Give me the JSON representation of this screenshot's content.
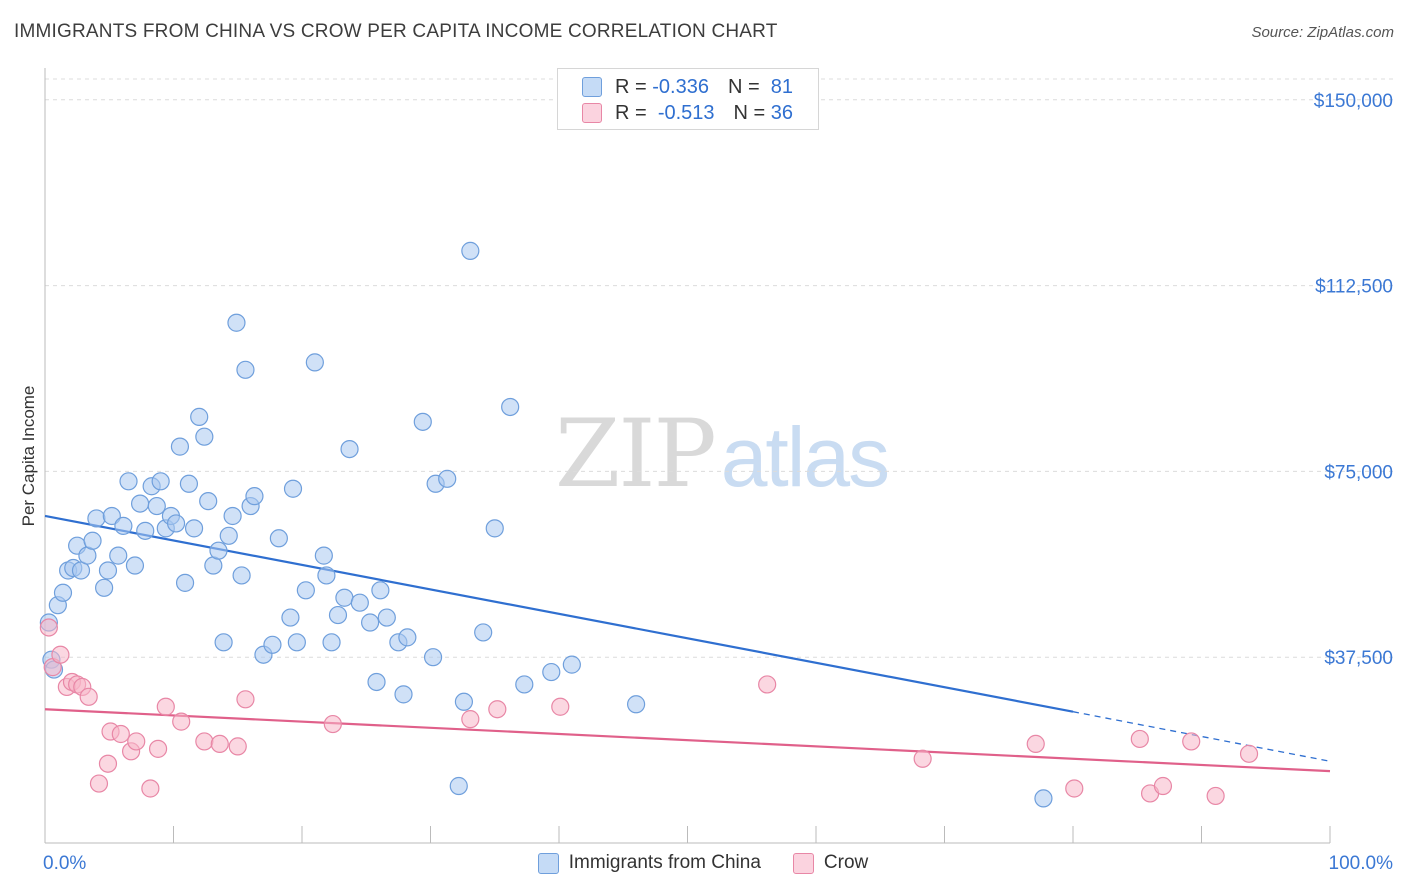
{
  "header": {
    "title": "IMMIGRANTS FROM CHINA VS CROW PER CAPITA INCOME CORRELATION CHART",
    "source": "Source: ZipAtlas.com"
  },
  "legend_top": {
    "rows": [
      {
        "r_label": "R =",
        "r_value": "-0.336",
        "n_label": "N =",
        "n_value": "81",
        "color": "#a9c8f0"
      },
      {
        "r_label": "R =",
        "r_value": "-0.513",
        "n_label": "N =",
        "n_value": "36",
        "color": "#f7b6c9"
      }
    ]
  },
  "watermark": {
    "zip": "ZIP",
    "atlas": "atlas"
  },
  "chart_data": {
    "type": "scatter",
    "title": "IMMIGRANTS FROM CHINA VS CROW PER CAPITA INCOME CORRELATION CHART",
    "ylabel": "Per Capita Income",
    "x_tick_labels": [
      "0.0%",
      "100.0%"
    ],
    "y_tick_labels": [
      "$150,000",
      "$112,500",
      "$75,000",
      "$37,500"
    ],
    "y_ticks": [
      150000,
      112500,
      75000,
      37500
    ],
    "xlim": [
      0,
      100
    ],
    "ylim": [
      0,
      155000
    ],
    "grid": true,
    "legend_position": "top-center",
    "series": [
      {
        "name": "Immigrants from China",
        "color": "#a9c8f0",
        "stroke": "#6f9fdc",
        "trend_color": "#2f6fd0",
        "trend": {
          "x0": 0,
          "y0": 66000,
          "x1": 80,
          "y1": 26500,
          "dash_to_x": 100,
          "dash_to_y": 16500
        },
        "points": [
          [
            0.3,
            44500
          ],
          [
            0.5,
            37000
          ],
          [
            0.7,
            35000
          ],
          [
            1.0,
            48000
          ],
          [
            1.4,
            50500
          ],
          [
            1.8,
            55000
          ],
          [
            2.2,
            55500
          ],
          [
            2.5,
            60000
          ],
          [
            2.8,
            55000
          ],
          [
            3.3,
            58000
          ],
          [
            3.7,
            61000
          ],
          [
            4.0,
            65500
          ],
          [
            4.6,
            51500
          ],
          [
            4.9,
            55000
          ],
          [
            5.2,
            66000
          ],
          [
            5.7,
            58000
          ],
          [
            6.1,
            64000
          ],
          [
            6.5,
            73000
          ],
          [
            7.0,
            56000
          ],
          [
            7.4,
            68500
          ],
          [
            7.8,
            63000
          ],
          [
            8.3,
            72000
          ],
          [
            8.7,
            68000
          ],
          [
            9.0,
            73000
          ],
          [
            9.4,
            63500
          ],
          [
            9.8,
            66000
          ],
          [
            10.2,
            64500
          ],
          [
            10.5,
            80000
          ],
          [
            10.9,
            52500
          ],
          [
            11.2,
            72500
          ],
          [
            11.6,
            63500
          ],
          [
            12.0,
            86000
          ],
          [
            12.4,
            82000
          ],
          [
            12.7,
            69000
          ],
          [
            13.1,
            56000
          ],
          [
            13.5,
            59000
          ],
          [
            13.9,
            40500
          ],
          [
            14.3,
            62000
          ],
          [
            14.6,
            66000
          ],
          [
            14.9,
            105000
          ],
          [
            15.3,
            54000
          ],
          [
            15.6,
            95500
          ],
          [
            16.0,
            68000
          ],
          [
            16.3,
            70000
          ],
          [
            17.0,
            38000
          ],
          [
            17.7,
            40000
          ],
          [
            18.2,
            61500
          ],
          [
            19.1,
            45500
          ],
          [
            19.3,
            71500
          ],
          [
            19.6,
            40500
          ],
          [
            20.3,
            51000
          ],
          [
            21.0,
            97000
          ],
          [
            21.7,
            58000
          ],
          [
            21.9,
            54000
          ],
          [
            22.3,
            40500
          ],
          [
            22.8,
            46000
          ],
          [
            23.3,
            49500
          ],
          [
            23.7,
            79500
          ],
          [
            24.5,
            48500
          ],
          [
            25.3,
            44500
          ],
          [
            25.8,
            32500
          ],
          [
            26.1,
            51000
          ],
          [
            26.6,
            45500
          ],
          [
            27.5,
            40500
          ],
          [
            27.9,
            30000
          ],
          [
            28.2,
            41500
          ],
          [
            29.4,
            85000
          ],
          [
            30.2,
            37500
          ],
          [
            30.4,
            72500
          ],
          [
            31.3,
            73500
          ],
          [
            32.2,
            11500
          ],
          [
            32.6,
            28500
          ],
          [
            33.1,
            119500
          ],
          [
            34.1,
            42500
          ],
          [
            35.0,
            63500
          ],
          [
            36.2,
            88000
          ],
          [
            37.3,
            32000
          ],
          [
            39.4,
            34500
          ],
          [
            41.0,
            36000
          ],
          [
            46.0,
            28000
          ],
          [
            77.7,
            9000
          ]
        ]
      },
      {
        "name": "Crow",
        "color": "#f7b6c9",
        "stroke": "#e887a6",
        "trend_color": "#e0608a",
        "trend": {
          "x0": 0,
          "y0": 27000,
          "x1": 100,
          "y1": 14500
        },
        "points": [
          [
            0.3,
            43500
          ],
          [
            0.6,
            35500
          ],
          [
            1.2,
            38000
          ],
          [
            1.7,
            31500
          ],
          [
            2.1,
            32500
          ],
          [
            2.5,
            32000
          ],
          [
            2.9,
            31500
          ],
          [
            3.4,
            29500
          ],
          [
            4.2,
            12000
          ],
          [
            4.9,
            16000
          ],
          [
            5.1,
            22500
          ],
          [
            5.9,
            22000
          ],
          [
            6.7,
            18500
          ],
          [
            7.1,
            20500
          ],
          [
            8.2,
            11000
          ],
          [
            8.8,
            19000
          ],
          [
            9.4,
            27500
          ],
          [
            10.6,
            24500
          ],
          [
            12.4,
            20500
          ],
          [
            13.6,
            20000
          ],
          [
            15.0,
            19500
          ],
          [
            15.6,
            29000
          ],
          [
            22.4,
            24000
          ],
          [
            33.1,
            25000
          ],
          [
            35.2,
            27000
          ],
          [
            40.1,
            27500
          ],
          [
            56.2,
            32000
          ],
          [
            68.3,
            17000
          ],
          [
            77.1,
            20000
          ],
          [
            80.1,
            11000
          ],
          [
            85.2,
            21000
          ],
          [
            86.0,
            10000
          ],
          [
            87.0,
            11500
          ],
          [
            89.2,
            20500
          ],
          [
            91.1,
            9500
          ],
          [
            93.7,
            18000
          ]
        ]
      }
    ]
  }
}
